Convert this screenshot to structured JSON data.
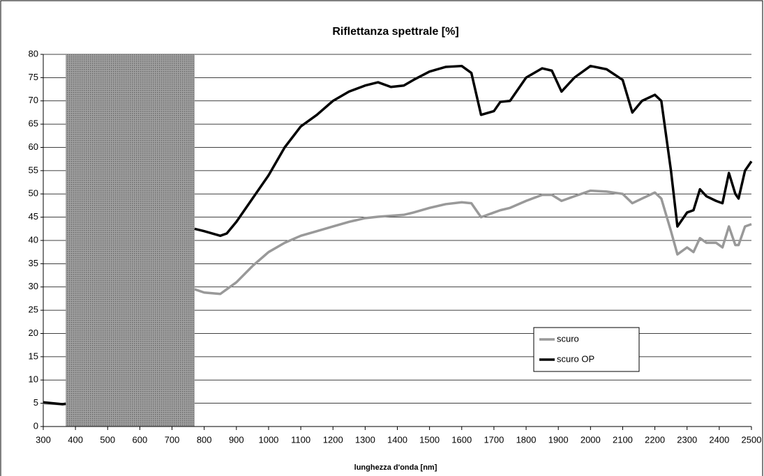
{
  "chart_data": {
    "type": "line",
    "title": "Riflettanza spettrale [%]",
    "x_label": "lunghezza d'onda [nm]",
    "x": [
      300,
      330,
      360,
      370,
      570,
      770,
      800,
      850,
      870,
      900,
      950,
      1000,
      1050,
      1100,
      1150,
      1200,
      1250,
      1300,
      1340,
      1380,
      1420,
      1450,
      1500,
      1550,
      1600,
      1630,
      1660,
      1700,
      1720,
      1750,
      1800,
      1850,
      1880,
      1910,
      1950,
      2000,
      2050,
      2100,
      2130,
      2160,
      2200,
      2220,
      2250,
      2270,
      2300,
      2320,
      2340,
      2360,
      2390,
      2410,
      2430,
      2450,
      2460,
      2480,
      2500
    ],
    "series": [
      {
        "name": "scuro",
        "color": "#999999",
        "values": [
          5,
          4.9,
          4.8,
          4.8,
          null,
          29.5,
          28.8,
          28.5,
          29.5,
          31,
          34.5,
          37.5,
          39.5,
          41,
          42,
          43,
          44,
          44.8,
          45.1,
          45.3,
          45.5,
          46,
          47,
          47.8,
          48.2,
          48,
          45,
          46,
          46.5,
          47,
          48.5,
          49.8,
          49.8,
          48.5,
          49.5,
          50.7,
          50.5,
          50,
          48,
          49,
          50.3,
          49,
          42,
          37,
          38.5,
          37.5,
          40.5,
          39.5,
          39.5,
          38.5,
          43,
          39,
          39,
          43,
          43.5
        ]
      },
      {
        "name": "scuro OP",
        "color": "#000000",
        "values": [
          5.2,
          5,
          4.8,
          4.9,
          null,
          42.5,
          42,
          41,
          41.5,
          44,
          49,
          54,
          60,
          64.5,
          67,
          70,
          72,
          73.3,
          74,
          73,
          73.3,
          74.5,
          76.3,
          77.3,
          77.5,
          76,
          67,
          67.8,
          69.8,
          70,
          75,
          77,
          76.5,
          72,
          75,
          77.5,
          76.8,
          74.5,
          67.5,
          70,
          71.3,
          70,
          55,
          43,
          46,
          46.5,
          51,
          49.5,
          48.5,
          48,
          54.5,
          50,
          49,
          55,
          57
        ]
      }
    ],
    "bands": [
      {
        "xlim": [
          370,
          770
        ],
        "color": "#8a8a8a"
      }
    ],
    "xlim": [
      300,
      2500
    ],
    "xticks": [
      300,
      400,
      500,
      600,
      700,
      800,
      900,
      1000,
      1100,
      1200,
      1300,
      1400,
      1500,
      1600,
      1700,
      1800,
      1900,
      2000,
      2100,
      2200,
      2300,
      2400,
      2500
    ],
    "ylim": [
      0,
      80
    ],
    "yticks": [
      0,
      5,
      10,
      15,
      20,
      25,
      30,
      35,
      40,
      45,
      50,
      55,
      60,
      65,
      70,
      75,
      80
    ],
    "grid": true
  }
}
